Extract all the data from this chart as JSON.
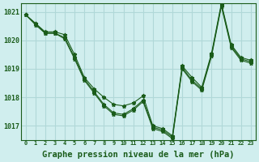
{
  "background_color": "#d0eeee",
  "grid_color": "#b0d8d8",
  "line_color": "#1a5c1a",
  "xlabel": "Graphe pression niveau de la mer (hPa)",
  "xlabel_fontsize": 7.5,
  "ylim": [
    1016.5,
    1021.3
  ],
  "xlim": [
    -0.5,
    23.5
  ],
  "yticks": [
    1017,
    1018,
    1019,
    1020,
    1021
  ],
  "xticks": [
    0,
    1,
    2,
    3,
    4,
    5,
    6,
    7,
    8,
    9,
    10,
    11,
    12,
    13,
    14,
    15,
    16,
    17,
    18,
    19,
    20,
    21,
    22,
    23
  ],
  "series1": [
    1020.9,
    1020.6,
    1020.3,
    1020.3,
    1020.2,
    1019.5,
    1018.7,
    1018.3,
    1018.0,
    1017.75,
    1017.7,
    1017.8,
    1018.05,
    1017.0,
    1016.9,
    1016.65,
    1019.1,
    1018.7,
    1018.35,
    1019.55,
    1021.3,
    1019.85,
    1019.4,
    1019.3
  ],
  "series2": [
    1020.9,
    1020.6,
    1020.25,
    1020.25,
    1020.1,
    1019.4,
    1018.65,
    1018.2,
    1017.75,
    1017.45,
    1017.4,
    1017.6,
    1017.9,
    1016.95,
    1016.85,
    1016.6,
    1019.05,
    1018.6,
    1018.3,
    1019.5,
    1021.25,
    1019.8,
    1019.35,
    1019.25
  ],
  "series3": [
    1020.9,
    1020.55,
    1020.25,
    1020.25,
    1020.05,
    1019.35,
    1018.6,
    1018.15,
    1017.7,
    1017.4,
    1017.35,
    1017.55,
    1017.85,
    1016.9,
    1016.8,
    1016.55,
    1019.0,
    1018.55,
    1018.25,
    1019.45,
    1021.2,
    1019.75,
    1019.3,
    1019.2
  ]
}
